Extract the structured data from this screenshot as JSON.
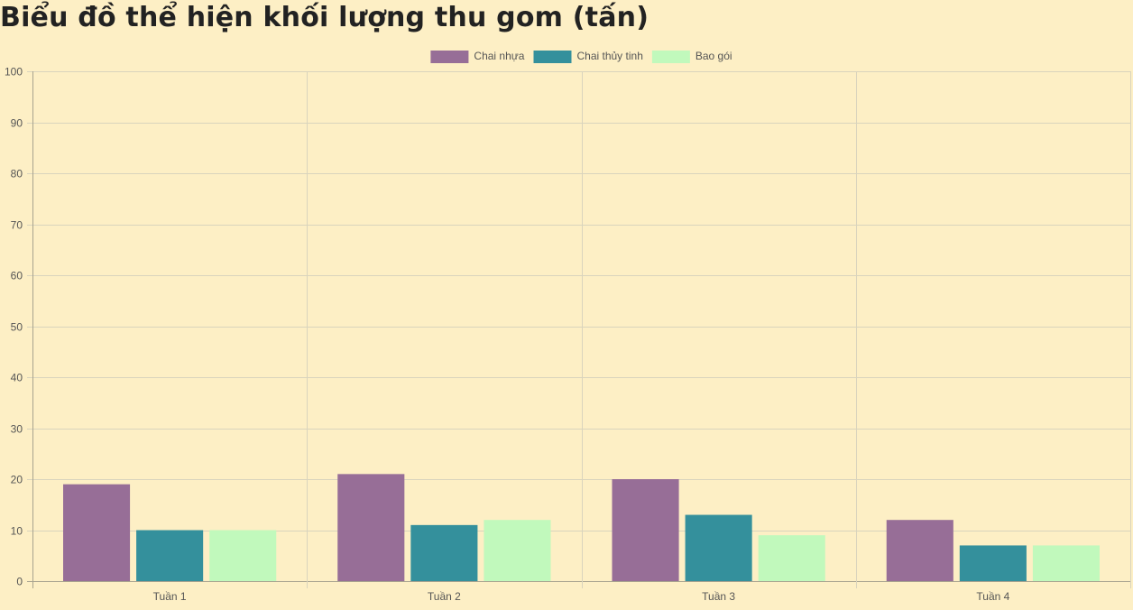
{
  "title": "Biểu đồ thể hiện khối lượng thu gom (tấn)",
  "chart_data": {
    "type": "bar",
    "title": "Biểu đồ thể hiện khối lượng thu gom (tấn)",
    "xlabel": "",
    "ylabel": "",
    "categories": [
      "Tuần 1",
      "Tuần 2",
      "Tuần 3",
      "Tuần 4"
    ],
    "series": [
      {
        "name": "Chai nhựa",
        "color": "#976e97",
        "values": [
          19,
          21,
          20,
          12
        ]
      },
      {
        "name": "Chai thủy tinh",
        "color": "#34909c",
        "values": [
          10,
          11,
          13,
          7
        ]
      },
      {
        "name": "Bao gói",
        "color": "#c1f9bc",
        "values": [
          10,
          12,
          9,
          7
        ]
      }
    ],
    "ylim": [
      0,
      100
    ],
    "yticks": [
      0,
      10,
      20,
      30,
      40,
      50,
      60,
      70,
      80,
      90,
      100
    ],
    "grid": true,
    "legend_position": "top-center"
  }
}
